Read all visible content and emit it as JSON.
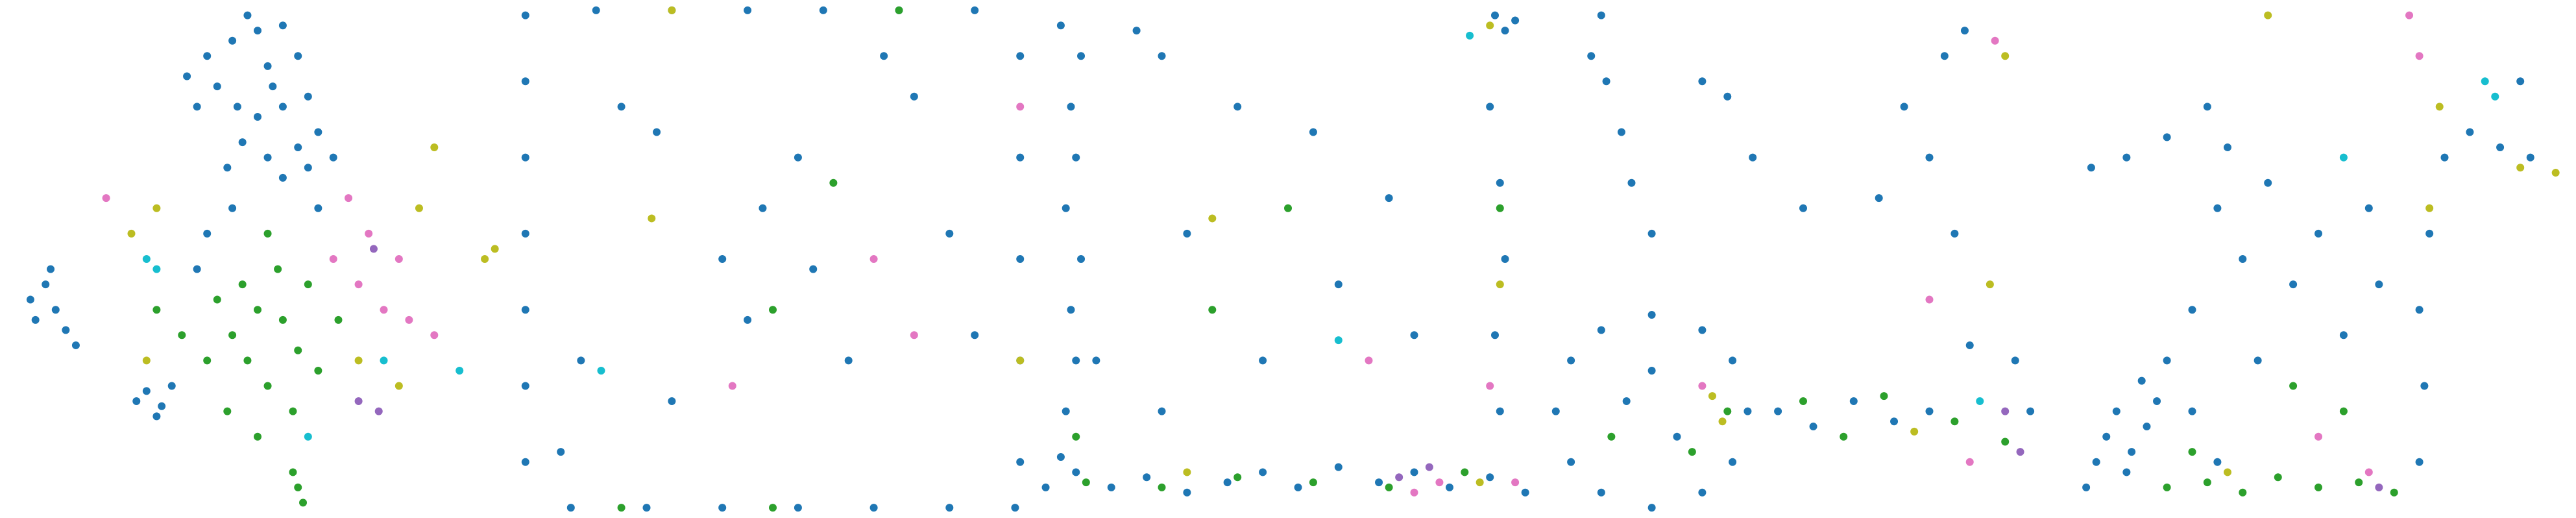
{
  "chart_data": [
    {
      "type": "scatter",
      "xlim": [
        0,
        1
      ],
      "ylim": [
        0,
        1
      ],
      "series": [
        {
          "color": "#1f77b4",
          "x": [
            0.4,
            0.45,
            0.5,
            0.55,
            0.58,
            0.52,
            0.42,
            0.38,
            0.46,
            0.5,
            0.55,
            0.6,
            0.62,
            0.58,
            0.52,
            0.47,
            0.44,
            0.55,
            0.6,
            0.65,
            0.36,
            0.48,
            0.53,
            0.05,
            0.08,
            0.1,
            0.06,
            0.12,
            0.14,
            0.09,
            0.28,
            0.31,
            0.33,
            0.3,
            0.26,
            0.4,
            0.45,
            0.38,
            0.62
          ],
          "values": [
            0.9,
            0.93,
            0.95,
            0.96,
            0.9,
            0.88,
            0.84,
            0.8,
            0.8,
            0.78,
            0.8,
            0.82,
            0.75,
            0.72,
            0.7,
            0.73,
            0.68,
            0.66,
            0.68,
            0.7,
            0.86,
            0.98,
            0.84,
            0.42,
            0.45,
            0.4,
            0.38,
            0.36,
            0.33,
            0.48,
            0.24,
            0.21,
            0.25,
            0.19,
            0.22,
            0.55,
            0.6,
            0.48,
            0.6
          ]
        },
        {
          "color": "#2ca02c",
          "x": [
            0.45,
            0.5,
            0.55,
            0.48,
            0.52,
            0.58,
            0.42,
            0.6,
            0.54,
            0.47,
            0.4,
            0.35,
            0.62,
            0.57,
            0.5,
            0.58,
            0.59,
            0.57,
            0.44,
            0.66,
            0.3,
            0.52
          ],
          "values": [
            0.35,
            0.4,
            0.38,
            0.3,
            0.25,
            0.32,
            0.42,
            0.45,
            0.48,
            0.45,
            0.3,
            0.35,
            0.28,
            0.2,
            0.15,
            0.05,
            0.02,
            0.08,
            0.2,
            0.38,
            0.4,
            0.55
          ]
        },
        {
          "color": "#e377c2",
          "x": [
            0.65,
            0.7,
            0.72,
            0.75,
            0.8,
            0.85,
            0.68,
            0.2,
            0.78
          ],
          "values": [
            0.5,
            0.45,
            0.55,
            0.4,
            0.38,
            0.35,
            0.62,
            0.62,
            0.5
          ]
        },
        {
          "color": "#bcbd22",
          "x": [
            0.25,
            0.3,
            0.7,
            0.78,
            0.85,
            0.97,
            0.95,
            0.82,
            0.28
          ],
          "values": [
            0.55,
            0.6,
            0.3,
            0.25,
            0.72,
            0.52,
            0.5,
            0.6,
            0.3
          ]
        },
        {
          "color": "#17becf",
          "x": [
            0.28,
            0.3,
            0.75,
            0.9,
            0.6
          ],
          "values": [
            0.5,
            0.48,
            0.3,
            0.28,
            0.15
          ]
        },
        {
          "color": "#9467bd",
          "x": [
            0.73,
            0.74,
            0.7
          ],
          "values": [
            0.52,
            0.2,
            0.22
          ]
        }
      ]
    },
    {
      "type": "scatter",
      "xlim": [
        0,
        1
      ],
      "ylim": [
        0,
        1
      ],
      "series": [
        {
          "color": "#1f77b4",
          "x": [
            0.01,
            0.01,
            0.01,
            0.01,
            0.01,
            0.01,
            0.01,
            0.15,
            0.3,
            0.45,
            0.6,
            0.75,
            0.9,
            0.99,
            0.99,
            0.99,
            0.99,
            0.99,
            0.1,
            0.25,
            0.4,
            0.55,
            0.7,
            0.85,
            0.98,
            0.2,
            0.27,
            0.48,
            0.72,
            0.58,
            0.4,
            0.65,
            0.85,
            0.12,
            0.3,
            0.55,
            0.9,
            0.08,
            0.45,
            0.78
          ],
          "values": [
            0.1,
            0.25,
            0.4,
            0.55,
            0.7,
            0.85,
            0.98,
            0.99,
            0.99,
            0.99,
            0.99,
            0.99,
            0.99,
            0.9,
            0.7,
            0.5,
            0.3,
            0.1,
            0.01,
            0.01,
            0.01,
            0.01,
            0.01,
            0.01,
            0.01,
            0.8,
            0.75,
            0.6,
            0.9,
            0.48,
            0.5,
            0.3,
            0.55,
            0.3,
            0.22,
            0.7,
            0.35,
            0.12,
            0.38,
            0.82
          ]
        },
        {
          "color": "#2ca02c",
          "x": [
            0.5,
            0.2,
            0.62,
            0.5,
            0.75
          ],
          "values": [
            0.01,
            0.01,
            0.65,
            0.4,
            0.99
          ]
        },
        {
          "color": "#bcbd22",
          "x": [
            0.26,
            0.99,
            0.3
          ],
          "values": [
            0.58,
            0.3,
            0.99
          ]
        },
        {
          "color": "#e377c2",
          "x": [
            0.99,
            0.7,
            0.42,
            0.78
          ],
          "values": [
            0.8,
            0.5,
            0.25,
            0.35
          ]
        },
        {
          "color": "#17becf",
          "x": [
            0.16
          ],
          "values": [
            0.28
          ]
        }
      ]
    },
    {
      "type": "scatter",
      "xlim": [
        0,
        1
      ],
      "ylim": [
        0,
        1
      ],
      "series": [
        {
          "color": "#1f77b4",
          "x": [
            0.02,
            0.08,
            0.15,
            0.22,
            0.3,
            0.38,
            0.45,
            0.52,
            0.6,
            0.68,
            0.75,
            0.82,
            0.9,
            0.97,
            0.05,
            0.06,
            0.08,
            0.07,
            0.09,
            0.06,
            0.08,
            0.07,
            0.09,
            0.05,
            0.12,
            0.92,
            0.91,
            0.93,
            0.92,
            0.9,
            0.93,
            0.95,
            0.91,
            0.2,
            0.25,
            0.4,
            0.55,
            0.3,
            0.6,
            0.75,
            0.45,
            0.25,
            0.7
          ],
          "values": [
            0.05,
            0.08,
            0.05,
            0.07,
            0.04,
            0.06,
            0.08,
            0.05,
            0.09,
            0.06,
            0.08,
            0.05,
            0.07,
            0.04,
            0.11,
            0.2,
            0.3,
            0.4,
            0.5,
            0.6,
            0.7,
            0.8,
            0.9,
            0.96,
            0.3,
            0.2,
            0.35,
            0.5,
            0.65,
            0.8,
            0.95,
            0.97,
            0.98,
            0.95,
            0.9,
            0.8,
            0.75,
            0.55,
            0.45,
            0.35,
            0.3,
            0.2,
            0.62
          ]
        },
        {
          "color": "#2ca02c",
          "x": [
            0.1,
            0.25,
            0.4,
            0.55,
            0.7,
            0.85,
            0.5,
            0.92,
            0.35,
            0.08
          ],
          "values": [
            0.06,
            0.05,
            0.07,
            0.06,
            0.05,
            0.08,
            0.6,
            0.6,
            0.4,
            0.15
          ]
        },
        {
          "color": "#e377c2",
          "x": [
            0.75,
            0.8,
            0.95,
            0.66,
            0.9
          ],
          "values": [
            0.04,
            0.06,
            0.06,
            0.3,
            0.25
          ]
        },
        {
          "color": "#bcbd22",
          "x": [
            0.9,
            0.3,
            0.92,
            0.35,
            0.88
          ],
          "values": [
            0.96,
            0.08,
            0.45,
            0.58,
            0.06
          ]
        },
        {
          "color": "#9467bd",
          "x": [
            0.72,
            0.78
          ],
          "values": [
            0.07,
            0.09
          ]
        },
        {
          "color": "#17becf",
          "x": [
            0.86,
            0.6
          ],
          "values": [
            0.94,
            0.34
          ]
        }
      ]
    },
    {
      "type": "scatter",
      "xlim": [
        0,
        1
      ],
      "ylim": [
        0,
        1
      ],
      "series": [
        {
          "color": "#1f77b4",
          "x": [
            0.39,
            0.36,
            0.3,
            0.2,
            0.1,
            0.04,
            0.01,
            0.04,
            0.1,
            0.2,
            0.3,
            0.36,
            0.15,
            0.25,
            0.2,
            0.45,
            0.52,
            0.6,
            0.68,
            0.75,
            0.95,
            0.92,
            0.83,
            0.1,
            0.11,
            0.14,
            0.16,
            0.2,
            0.08,
            0.3,
            0.35,
            0.7,
            0.78,
            0.82,
            0.75,
            0.8,
            0.65,
            0.5,
            0.4
          ],
          "values": [
            0.2,
            0.3,
            0.36,
            0.39,
            0.36,
            0.3,
            0.2,
            0.1,
            0.04,
            0.01,
            0.04,
            0.1,
            0.22,
            0.15,
            0.28,
            0.2,
            0.17,
            0.22,
            0.18,
            0.2,
            0.2,
            0.3,
            0.33,
            0.98,
            0.85,
            0.75,
            0.65,
            0.55,
            0.9,
            0.85,
            0.82,
            0.8,
            0.9,
            0.95,
            0.7,
            0.55,
            0.62,
            0.6,
            0.7
          ]
        },
        {
          "color": "#2ca02c",
          "x": [
            0.35,
            0.5,
            0.58,
            0.66,
            0.8,
            0.28,
            0.12,
            0.9
          ],
          "values": [
            0.2,
            0.22,
            0.15,
            0.23,
            0.18,
            0.12,
            0.15,
            0.14
          ]
        },
        {
          "color": "#bcbd22",
          "x": [
            0.32,
            0.34,
            0.9,
            0.87,
            0.72
          ],
          "values": [
            0.23,
            0.18,
            0.9,
            0.45,
            0.16
          ]
        },
        {
          "color": "#e377c2",
          "x": [
            0.3,
            0.83,
            0.88,
            0.75
          ],
          "values": [
            0.25,
            0.1,
            0.93,
            0.42
          ]
        },
        {
          "color": "#9467bd",
          "x": [
            0.9,
            0.93
          ],
          "values": [
            0.2,
            0.12
          ]
        },
        {
          "color": "#17becf",
          "x": [
            0.85
          ],
          "values": [
            0.22
          ]
        }
      ]
    },
    {
      "type": "scatter",
      "xlim": [
        0,
        1
      ],
      "ylim": [
        0,
        1
      ],
      "series": [
        {
          "color": "#1f77b4",
          "x": [
            0.08,
            0.1,
            0.13,
            0.16,
            0.12,
            0.06,
            0.18,
            0.15,
            0.04,
            0.2,
            0.25,
            0.3,
            0.05,
            0.12,
            0.2,
            0.28,
            0.7,
            0.71,
            0.7,
            0.72,
            0.75,
            0.8,
            0.86,
            0.92,
            0.3,
            0.35,
            0.4,
            0.45,
            0.5,
            0.55,
            0.6,
            0.25,
            0.38,
            0.62,
            0.32,
            0.9
          ],
          "values": [
            0.15,
            0.2,
            0.12,
            0.17,
            0.08,
            0.1,
            0.22,
            0.26,
            0.05,
            0.3,
            0.2,
            0.1,
            0.68,
            0.7,
            0.74,
            0.8,
            0.1,
            0.25,
            0.4,
            0.55,
            0.7,
            0.75,
            0.72,
            0.7,
            0.6,
            0.5,
            0.65,
            0.45,
            0.55,
            0.35,
            0.6,
            0.4,
            0.3,
            0.45,
            0.72,
            0.85
          ]
        },
        {
          "color": "#2ca02c",
          "x": [
            0.2,
            0.28,
            0.35,
            0.42,
            0.5,
            0.58,
            0.65,
            0.45,
            0.55,
            0.25
          ],
          "values": [
            0.05,
            0.06,
            0.04,
            0.07,
            0.05,
            0.06,
            0.04,
            0.25,
            0.2,
            0.12
          ]
        },
        {
          "color": "#bcbd22",
          "x": [
            0.9,
            0.97,
            0.32,
            0.72,
            0.4,
            0.74
          ],
          "values": [
            0.68,
            0.67,
            0.08,
            0.6,
            0.98,
            0.8
          ]
        },
        {
          "color": "#e377c2",
          "x": [
            0.68,
            0.7,
            0.6,
            0.5
          ],
          "values": [
            0.98,
            0.9,
            0.08,
            0.15
          ]
        },
        {
          "color": "#17becf",
          "x": [
            0.83,
            0.85,
            0.55
          ],
          "values": [
            0.85,
            0.82,
            0.7
          ]
        },
        {
          "color": "#9467bd",
          "x": [
            0.62
          ],
          "values": [
            0.05
          ]
        }
      ]
    }
  ]
}
